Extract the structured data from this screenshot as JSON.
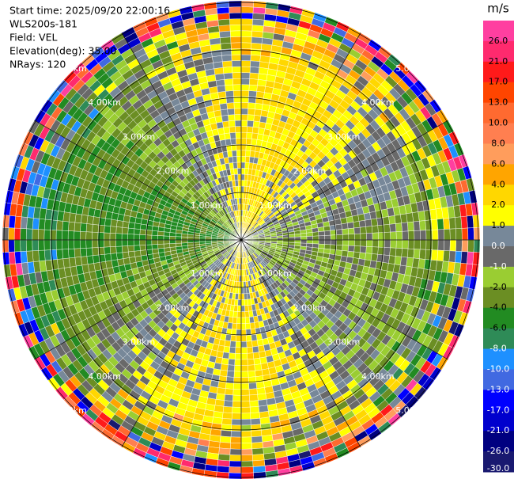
{
  "header": {
    "lines": [
      "Start time: 2025/09/20 22:00:16",
      "WLS200s-181",
      "Field: VEL",
      "Elevation(deg): 35.00",
      "NRays: 120"
    ]
  },
  "range_rings": {
    "labels": [
      "1.00km",
      "2.00km",
      "3.00km",
      "4.00km",
      "5.00km"
    ]
  },
  "colorbar": {
    "unit": "m/s",
    "ticks": [
      {
        "value": 26,
        "label": "26.0"
      },
      {
        "value": 21,
        "label": "21.0"
      },
      {
        "value": 17,
        "label": "17.0"
      },
      {
        "value": 13,
        "label": "13.0"
      },
      {
        "value": 10,
        "label": "10.0"
      },
      {
        "value": 8,
        "label": "8.0"
      },
      {
        "value": 6,
        "label": "6.0"
      },
      {
        "value": 4,
        "label": "4.0"
      },
      {
        "value": 2,
        "label": "2.0"
      },
      {
        "value": 1,
        "label": "1.0"
      },
      {
        "value": 0,
        "label": "0.0"
      },
      {
        "value": -1,
        "label": "-1.0"
      },
      {
        "value": -2,
        "label": "-2.0"
      },
      {
        "value": -4,
        "label": "-4.0"
      },
      {
        "value": -6,
        "label": "-6.0"
      },
      {
        "value": -8,
        "label": "-8.0"
      },
      {
        "value": -10,
        "label": "-10.0"
      },
      {
        "value": -13,
        "label": "-13.0"
      },
      {
        "value": -17,
        "label": "-17.0"
      },
      {
        "value": -21,
        "label": "-21.0"
      },
      {
        "value": -26,
        "label": "-26.0"
      },
      {
        "value": -30,
        "label": "-30.0"
      }
    ],
    "colors": [
      "#ff3fa0",
      "#ff2a6e",
      "#ff1a1a",
      "#ff4500",
      "#ff6a30",
      "#ff7f50",
      "#ff9d5c",
      "#ffa500",
      "#ffd700",
      "#ffff00",
      "#778899",
      "#696969",
      "#9acd32",
      "#6b8e23",
      "#228b22",
      "#2e8b57",
      "#1e90ff",
      "#4169e1",
      "#0000ff",
      "#0000cd",
      "#000080",
      "#191970"
    ]
  }
}
